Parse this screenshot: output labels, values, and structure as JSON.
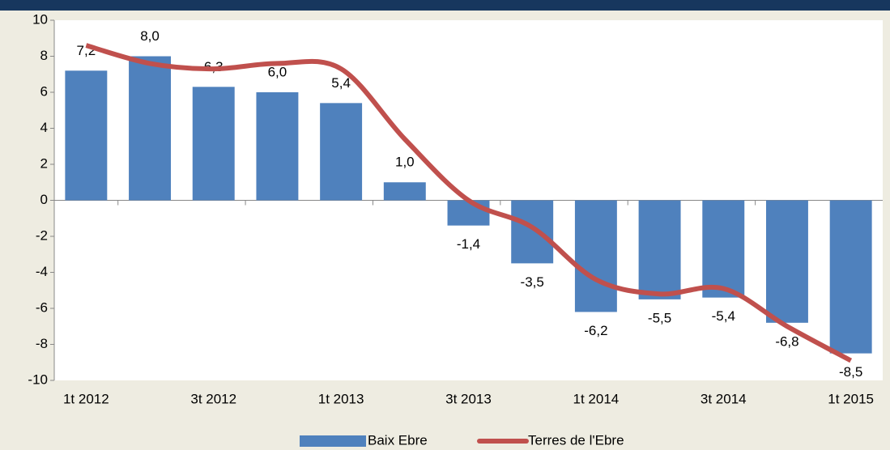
{
  "chart_data": {
    "type": "bar-line",
    "categories": [
      "1t 2012",
      null,
      "3t 2012",
      null,
      "1t 2013",
      null,
      "3t 2013",
      null,
      "1t 2014",
      null,
      "3t 2014",
      null,
      "1t 2015"
    ],
    "series": [
      {
        "name": "Baix Ebre",
        "type": "bar",
        "color": "#4f81bd",
        "values": [
          7.2,
          8.0,
          6.3,
          6.0,
          5.4,
          1.0,
          -1.4,
          -3.5,
          -6.2,
          -5.5,
          -5.4,
          -6.8,
          -8.5
        ],
        "value_labels": [
          "7,2",
          "8,0",
          "6,3",
          "6,0",
          "5,4",
          "1,0",
          "-1,4",
          "-3,5",
          "-6,2",
          "-5,5",
          "-5,4",
          "-6,8",
          "-8,5"
        ]
      },
      {
        "name": "Terres de l'Ebre",
        "type": "line",
        "color": "#c0504d",
        "values": [
          8.6,
          7.6,
          7.3,
          7.6,
          7.3,
          3.4,
          0.0,
          -1.5,
          -4.4,
          -5.2,
          -4.9,
          -7.0,
          -8.9
        ]
      }
    ],
    "ylim": [
      -10,
      10
    ],
    "yticks": [
      -10,
      -8,
      -6,
      -4,
      -2,
      0,
      2,
      4,
      6,
      8,
      10
    ],
    "legend": "bottom"
  }
}
